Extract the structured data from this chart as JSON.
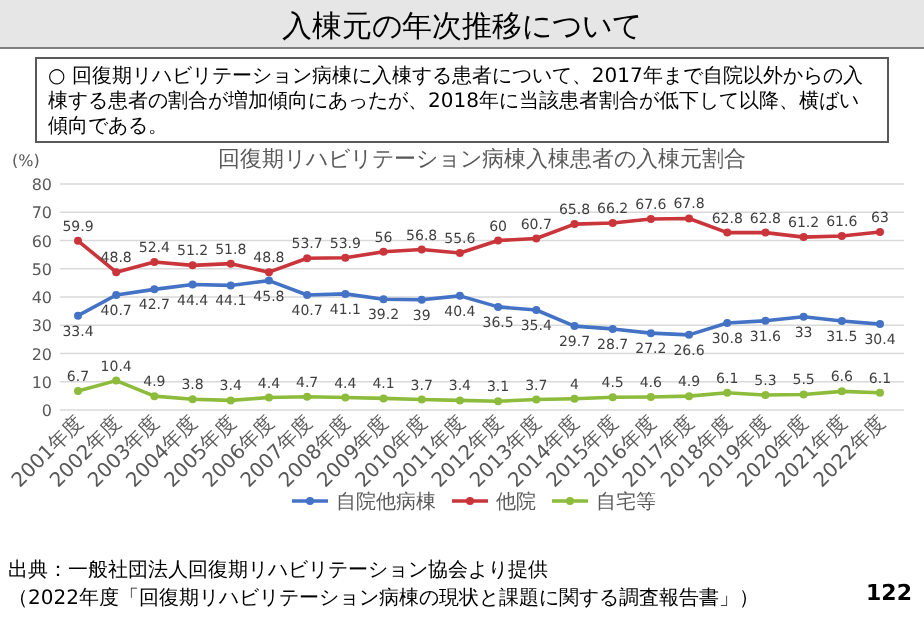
{
  "chart_data": {
    "type": "line",
    "title": "回復期リハビリテーション病棟入棟患者の入棟元割合",
    "ylabel": "(%)",
    "annotations": [
      "入棟元の年次推移について",
      "○ 回復期リハビリテーション病棟に入棟する患者について、2017年まで自院以外からの入棟する患者の割合が増加傾向にあったが、2018年に当該患者割合が低下して以降、横ばい傾向である。",
      "出典：一般社団法人回復期リハビリテーション協会より提供",
      "（2022年度「回復期リハビリテーション病棟の現状と課題に関する調査報告書」）",
      "122"
    ],
    "categories": [
      "2001年度",
      "2002年度",
      "2003年度",
      "2004年度",
      "2005年度",
      "2006年度",
      "2007年度",
      "2008年度",
      "2009年度",
      "2010年度",
      "2011年度",
      "2012年度",
      "2013年度",
      "2014年度",
      "2015年度",
      "2016年度",
      "2017年度",
      "2018年度",
      "2019年度",
      "2020年度",
      "2021年度",
      "2022年度"
    ],
    "series": [
      {
        "name": "自院他病棟",
        "color": "#4472c4",
        "values": [
          33.4,
          40.7,
          42.7,
          44.4,
          44.1,
          45.8,
          40.7,
          41.1,
          39.2,
          39,
          40.4,
          36.5,
          35.4,
          29.7,
          28.7,
          27.2,
          26.6,
          30.8,
          31.6,
          33,
          31.5,
          30.4
        ]
      },
      {
        "name": "他院",
        "color": "#c9353a",
        "values": [
          59.9,
          48.8,
          52.4,
          51.2,
          51.8,
          48.8,
          53.7,
          53.9,
          56,
          56.8,
          55.6,
          60,
          60.7,
          65.8,
          66.2,
          67.6,
          67.8,
          62.8,
          62.8,
          61.2,
          61.6,
          63
        ]
      },
      {
        "name": "自宅等",
        "color": "#8dbb3c",
        "values": [
          6.7,
          10.4,
          4.9,
          3.8,
          3.4,
          4.4,
          4.7,
          4.4,
          4.1,
          3.7,
          3.4,
          3.1,
          3.7,
          4,
          4.5,
          4.6,
          4.9,
          6.1,
          5.3,
          5.5,
          6.6,
          6.1
        ]
      }
    ],
    "ylim": [
      0,
      80
    ],
    "yticks": [
      0,
      10,
      20,
      30,
      40,
      50,
      60,
      70,
      80
    ],
    "grid": "y",
    "legend": "bottom",
    "marker": "circle",
    "line_style": "solid",
    "data_labels": true
  }
}
